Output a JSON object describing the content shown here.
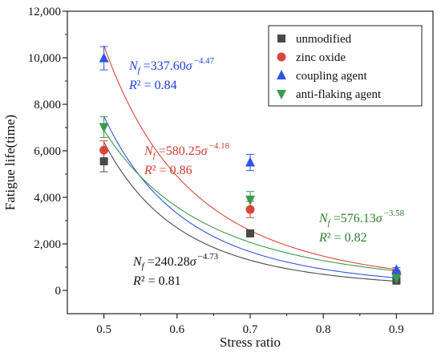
{
  "chart_data": {
    "type": "scatter",
    "xlabel": "Stress ratio",
    "ylabel": "Fatigue life(time)",
    "xlim": [
      0.45,
      0.95
    ],
    "ylim": [
      -1000,
      12000
    ],
    "x_ticks": [
      "0.5",
      "0.6",
      "0.7",
      "0.8",
      "0.9"
    ],
    "x_tick_values": [
      0.5,
      0.6,
      0.7,
      0.8,
      0.9
    ],
    "y_ticks": [
      "0",
      "2,000",
      "4,000",
      "6,000",
      "8,000",
      "10,000",
      "12,000"
    ],
    "y_tick_values": [
      0,
      2000,
      4000,
      6000,
      8000,
      10000,
      12000
    ],
    "legend_position": "top-right",
    "series": [
      {
        "name": "unmodified",
        "color": "#4a4a4a",
        "marker": "square",
        "x": [
          0.5,
          0.7,
          0.9
        ],
        "y": [
          5550,
          2450,
          420
        ],
        "error": [
          450,
          150,
          80
        ],
        "fit": {
          "coef": 240.28,
          "exp": -4.73
        },
        "equation": {
          "prefix": "N",
          "sub": "f",
          "middle": " =240.28",
          "sigma": "σ",
          "exponent": "−4.73",
          "r2": "R² = 0.81"
        }
      },
      {
        "name": "zinc oxide",
        "color": "#d9473a",
        "marker": "circle",
        "x": [
          0.5,
          0.7,
          0.9
        ],
        "y": [
          6030,
          3480,
          760
        ],
        "error": [
          400,
          350,
          120
        ],
        "fit": {
          "coef": 580.25,
          "exp": -4.18
        },
        "equation": {
          "prefix": "N",
          "sub": "f",
          "middle": " =580.25",
          "sigma": "σ",
          "exponent": "−4.18",
          "r2": "R² = 0.86"
        }
      },
      {
        "name": "coupling agent",
        "color": "#2f55e3",
        "marker": "triangle-up",
        "x": [
          0.5,
          0.7,
          0.9
        ],
        "y": [
          9980,
          5500,
          880
        ],
        "error": [
          500,
          350,
          100
        ],
        "fit": {
          "coef": 337.6,
          "exp": -4.47
        },
        "equation": {
          "prefix": "N",
          "sub": "f",
          "middle": " =337.60",
          "sigma": "σ",
          "exponent": "−4.47",
          "r2": "R² = 0.84"
        }
      },
      {
        "name": "anti-flaking agent",
        "color": "#3a9a4c",
        "marker": "triangle-down",
        "x": [
          0.5,
          0.7,
          0.9
        ],
        "y": [
          7020,
          3900,
          530
        ],
        "error": [
          450,
          350,
          90
        ],
        "fit": {
          "coef": 576.13,
          "exp": -3.58
        },
        "equation": {
          "prefix": "N",
          "sub": "f",
          "middle": " =576.13",
          "sigma": "σ",
          "exponent": "−3.58",
          "r2": "R² = 0.82"
        }
      }
    ]
  },
  "annotation_colors": {
    "unmodified": "#111111",
    "zinc oxide": "#d23a2e",
    "coupling agent": "#1f3fe0",
    "anti-flaking agent": "#2e7d2e"
  }
}
